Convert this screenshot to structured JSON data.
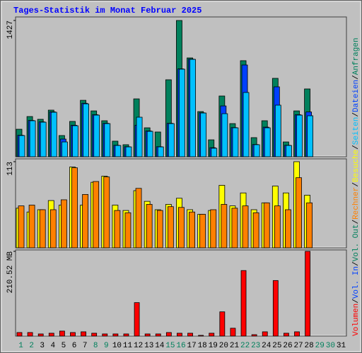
{
  "title": "Tages-Statistik im Monat Februar 2025",
  "legend_separator": "/",
  "chart_data": [
    {
      "type": "bar",
      "ylim": [
        0,
        1427
      ],
      "yticks": [
        1427
      ],
      "series": [
        {
          "name": "Anfragen",
          "color": "#00805c",
          "values": [
            288,
            421,
            392,
            488,
            222,
            370,
            591,
            480,
            377,
            163,
            126,
            606,
            303,
            259,
            806,
            1427,
            1035,
            473,
            177,
            636,
            347,
            1006,
            200,
            377,
            821,
            155,
            480,
            710,
            null,
            null,
            null
          ]
        },
        {
          "name": "Dateien",
          "color": "#0040ff",
          "values": [
            225,
            380,
            365,
            470,
            185,
            330,
            560,
            440,
            350,
            120,
            105,
            330,
            270,
            105,
            350,
            920,
            1022,
            460,
            95,
            532,
            305,
            961,
            128,
            310,
            732,
            120,
            440,
            469,
            null,
            null,
            null
          ]
        },
        {
          "name": "Seiten",
          "color": "#00c0ff",
          "values": [
            222,
            377,
            362,
            466,
            155,
            325,
            554,
            436,
            347,
            118,
            103,
            414,
            266,
            103,
            347,
            917,
            1020,
            458,
            89,
            451,
            303,
            673,
            126,
            303,
            540,
            118,
            436,
            429,
            null,
            null,
            null
          ]
        }
      ]
    },
    {
      "type": "bar",
      "ylim": [
        0,
        113
      ],
      "yticks": [
        113
      ],
      "series": [
        {
          "name": "Besuche",
          "color": "#ffff00",
          "values": [
            52,
            47,
            50,
            62,
            56,
            106,
            56,
            86,
            94,
            56,
            49,
            75,
            61,
            50,
            57,
            65,
            50,
            44,
            49,
            82,
            55,
            72,
            50,
            59,
            81,
            72,
            113,
            69,
            null,
            null,
            null
          ]
        },
        {
          "name": "Rechner",
          "color": "#ff8000",
          "values": [
            55,
            56,
            50,
            50,
            63,
            105,
            70,
            87,
            93,
            49,
            46,
            78,
            57,
            49,
            54,
            53,
            47,
            44,
            50,
            57,
            52,
            55,
            46,
            59,
            55,
            50,
            92,
            59,
            null,
            null,
            null
          ]
        }
      ]
    },
    {
      "type": "bar",
      "ylim": [
        0,
        210.52
      ],
      "yticks": [
        {
          "value": 210.52,
          "label": "210.52 MB"
        }
      ],
      "categories": [
        "1",
        "2",
        "3",
        "4",
        "5",
        "6",
        "7",
        "8",
        "9",
        "10",
        "11",
        "12",
        "13",
        "14",
        "15",
        "16",
        "17",
        "18",
        "19",
        "20",
        "21",
        "22",
        "23",
        "24",
        "25",
        "26",
        "27",
        "28",
        "29",
        "30",
        "31"
      ],
      "category_colors": [
        "#00805c",
        "#00805c",
        "#000000",
        "#000000",
        "#000000",
        "#000000",
        "#000000",
        "#00805c",
        "#00805c",
        "#000000",
        "#000000",
        "#000000",
        "#000000",
        "#000000",
        "#00805c",
        "#00805c",
        "#000000",
        "#000000",
        "#000000",
        "#000000",
        "#000000",
        "#00805c",
        "#00805c",
        "#000000",
        "#000000",
        "#000000",
        "#000000",
        "#000000",
        "#00805c",
        "#00805c",
        "#000000"
      ],
      "series": [
        {
          "name": "Volumen",
          "color": "#ff0000",
          "values": [
            8.8,
            8.8,
            5.3,
            7.1,
            12.4,
            8.8,
            10.6,
            7.1,
            5.3,
            5.3,
            5.3,
            83.1,
            5.3,
            5.3,
            8.8,
            7.1,
            7.1,
            1.8,
            7.1,
            60.2,
            19.5,
            162.8,
            3.5,
            10.6,
            138.0,
            7.1,
            10.6,
            210.52,
            null,
            null,
            null
          ]
        },
        {
          "name": "Vol. In",
          "color": "#0040ff"
        },
        {
          "name": "Vol. Out",
          "color": "#00805c"
        }
      ]
    }
  ]
}
